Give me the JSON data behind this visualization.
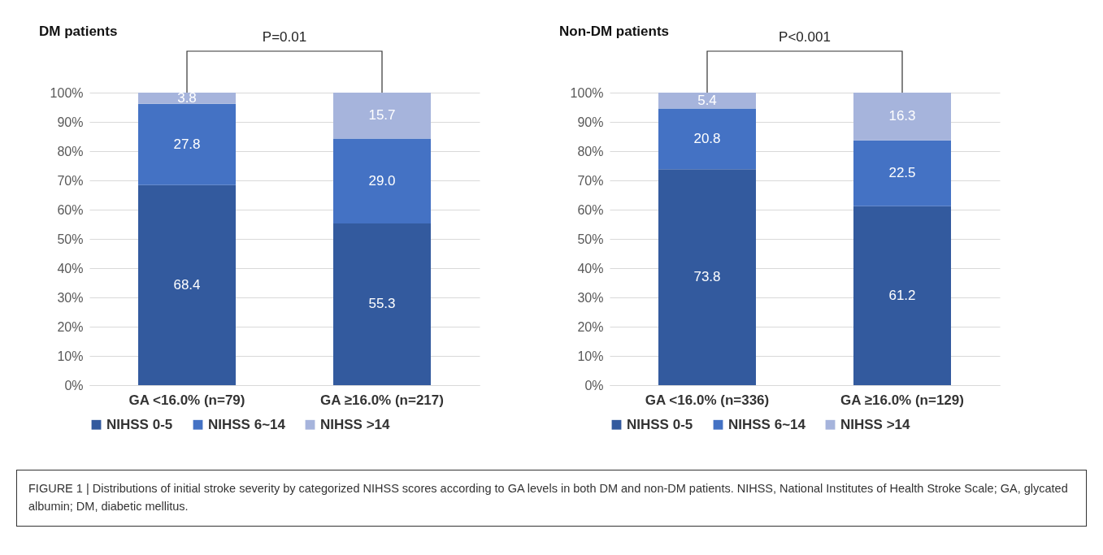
{
  "chart_data": [
    {
      "type": "bar",
      "stacked": true,
      "title": "DM patients",
      "categories": [
        "GA <16.0% (n=79)",
        "GA ≥16.0% (n=217)"
      ],
      "series": [
        {
          "name": "NIHSS 0-5",
          "color": "#335a9e",
          "values": [
            68.4,
            55.3
          ]
        },
        {
          "name": "NIHSS 6~14",
          "color": "#4472c4",
          "values": [
            27.8,
            29.0
          ]
        },
        {
          "name": "NIHSS >14",
          "color": "#a6b4dc",
          "values": [
            3.8,
            15.7
          ]
        }
      ],
      "value_labels": [
        [
          "68.4",
          "55.3"
        ],
        [
          "27.8",
          "29.0"
        ],
        [
          "3.8",
          "15.7"
        ]
      ],
      "ylim": [
        0,
        100
      ],
      "yticks": [
        {
          "value": 0,
          "label": "0%"
        },
        {
          "value": 10,
          "label": "10%"
        },
        {
          "value": 20,
          "label": "20%"
        },
        {
          "value": 30,
          "label": "30%"
        },
        {
          "value": 40,
          "label": "40%"
        },
        {
          "value": 50,
          "label": "50%"
        },
        {
          "value": 60,
          "label": "60%"
        },
        {
          "value": 70,
          "label": "70%"
        },
        {
          "value": 80,
          "label": "80%"
        },
        {
          "value": 90,
          "label": "90%"
        },
        {
          "value": 100,
          "label": "100%"
        }
      ],
      "grid": "y",
      "legend": "bottom",
      "annotations": [
        "P=0.01",
        "FIGURE 1 | Distributions of initial stroke severity by categorized NIHSS scores according to GA levels in both DM and non-DM patients. NIHSS, National Institutes of Health Stroke Scale; GA, glycated albumin; DM, diabetic mellitus."
      ]
    },
    {
      "type": "bar",
      "stacked": true,
      "title": "Non-DM patients",
      "categories": [
        "GA <16.0% (n=336)",
        "GA ≥16.0% (n=129)"
      ],
      "series": [
        {
          "name": "NIHSS 0-5",
          "color": "#335a9e",
          "values": [
            73.8,
            61.2
          ]
        },
        {
          "name": "NIHSS 6~14",
          "color": "#4472c4",
          "values": [
            20.8,
            22.5
          ]
        },
        {
          "name": "NIHSS >14",
          "color": "#a6b4dc",
          "values": [
            5.4,
            16.3
          ]
        }
      ],
      "value_labels": [
        [
          "73.8",
          "61.2"
        ],
        [
          "20.8",
          "22.5"
        ],
        [
          "5.4",
          "16.3"
        ]
      ],
      "ylim": [
        0,
        100
      ],
      "yticks": [
        {
          "value": 0,
          "label": "0%"
        },
        {
          "value": 10,
          "label": "10%"
        },
        {
          "value": 20,
          "label": "20%"
        },
        {
          "value": 30,
          "label": "30%"
        },
        {
          "value": 40,
          "label": "40%"
        },
        {
          "value": 50,
          "label": "50%"
        },
        {
          "value": 60,
          "label": "60%"
        },
        {
          "value": 70,
          "label": "70%"
        },
        {
          "value": 80,
          "label": "80%"
        },
        {
          "value": 90,
          "label": "90%"
        },
        {
          "value": 100,
          "label": "100%"
        }
      ],
      "grid": "y",
      "legend": "bottom",
      "annotations": [
        "P<0.001"
      ]
    }
  ]
}
